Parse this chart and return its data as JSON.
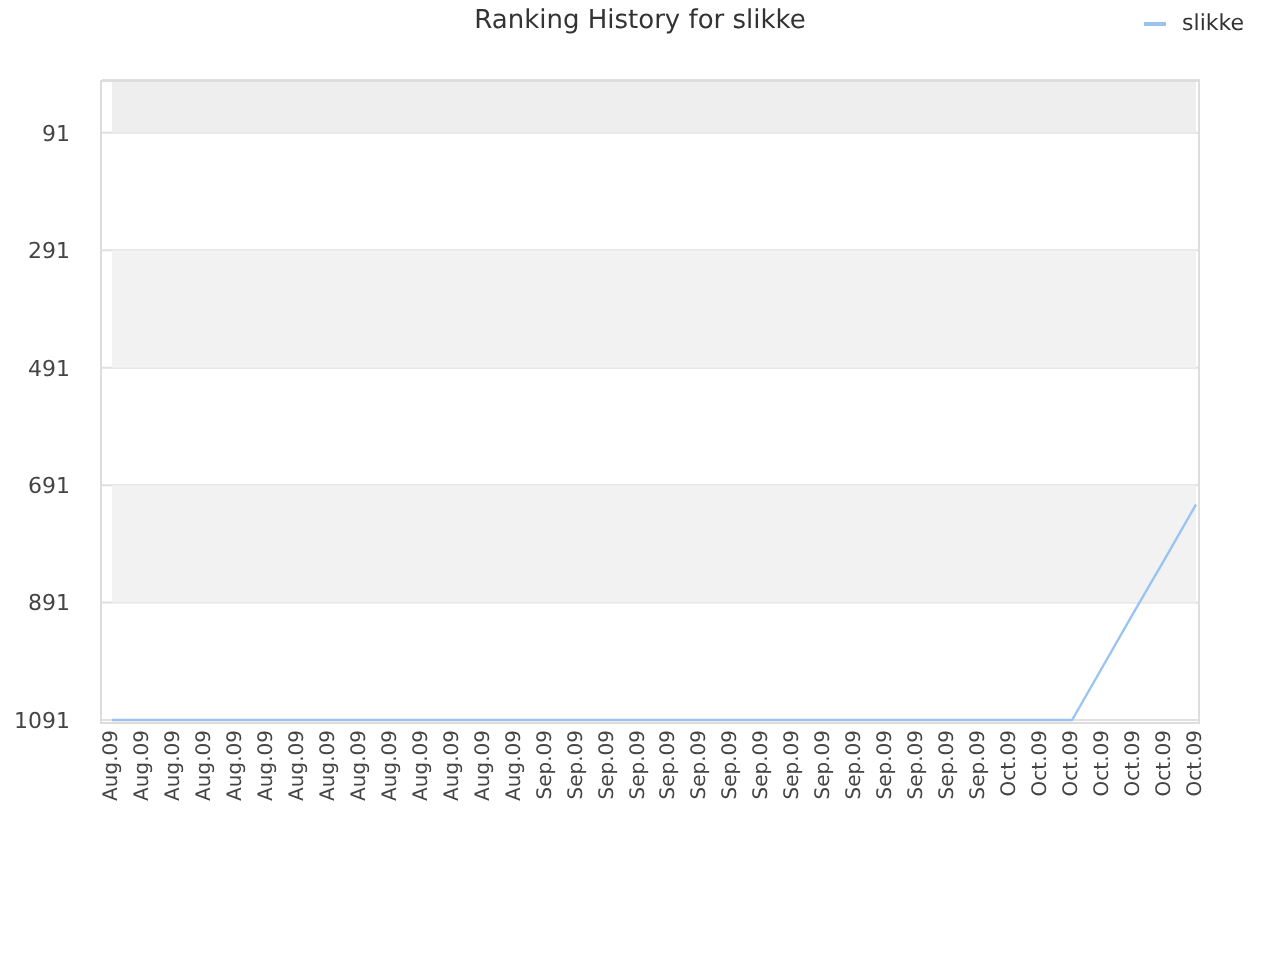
{
  "chart_data": {
    "type": "line",
    "title": "Ranking History for slikke",
    "categories": [
      "Aug.09",
      "Aug.09",
      "Aug.09",
      "Aug.09",
      "Aug.09",
      "Aug.09",
      "Aug.09",
      "Aug.09",
      "Aug.09",
      "Aug.09",
      "Aug.09",
      "Aug.09",
      "Aug.09",
      "Aug.09",
      "Sep.09",
      "Sep.09",
      "Sep.09",
      "Sep.09",
      "Sep.09",
      "Sep.09",
      "Sep.09",
      "Sep.09",
      "Sep.09",
      "Sep.09",
      "Sep.09",
      "Sep.09",
      "Sep.09",
      "Sep.09",
      "Sep.09",
      "Oct.09",
      "Oct.09",
      "Oct.09",
      "Oct.09",
      "Oct.09",
      "Oct.09",
      "Oct.09"
    ],
    "series": [
      {
        "name": "slikke",
        "color": "#99c4f2",
        "values": [
          1091,
          1091,
          1091,
          1091,
          1091,
          1091,
          1091,
          1091,
          1091,
          1091,
          1091,
          1091,
          1091,
          1091,
          1091,
          1091,
          1091,
          1091,
          1091,
          1091,
          1091,
          1091,
          1091,
          1091,
          1091,
          1091,
          1091,
          1091,
          1091,
          1091,
          1091,
          1091,
          999,
          907,
          816,
          724
        ]
      }
    ],
    "ylim": [
      1091,
      1
    ],
    "yticks": [
      91,
      291,
      491,
      691,
      891,
      1091
    ],
    "grid": "y",
    "legend": "top right",
    "line_style": "solid",
    "bands": [
      {
        "axis": "y",
        "from": 1,
        "to": 91,
        "color": "#eeeeee"
      },
      {
        "axis": "y",
        "from": 291,
        "to": 491,
        "color": "#f2f2f2"
      },
      {
        "axis": "y",
        "from": 691,
        "to": 891,
        "color": "#f2f2f2"
      }
    ]
  }
}
